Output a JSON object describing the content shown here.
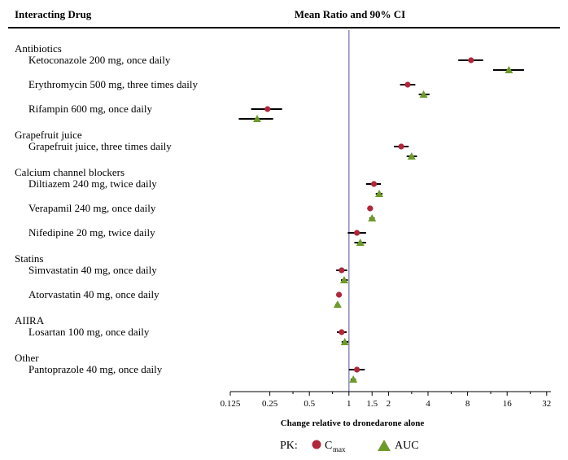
{
  "chart_data": {
    "type": "forest",
    "header_left": "Interacting Drug",
    "header_center": "Mean Ratio and 90% CI",
    "xlabel": "Change relative to dronedarone alone",
    "x_scale": "log2",
    "xlim": [
      0.125,
      32
    ],
    "x_ticks": [
      {
        "value": 0.125,
        "label": "0.125"
      },
      {
        "value": 0.25,
        "label": "0.25"
      },
      {
        "value": 0.5,
        "label": "0.5"
      },
      {
        "value": 1,
        "label": "1"
      },
      {
        "value": 1.5,
        "label": "1.5"
      },
      {
        "value": 2,
        "label": "2"
      },
      {
        "value": 4,
        "label": "4"
      },
      {
        "value": 8,
        "label": "8"
      },
      {
        "value": 16,
        "label": "16"
      },
      {
        "value": 32,
        "label": "32"
      }
    ],
    "reference_line": 1,
    "reference_color": "#8a8ab8",
    "legend": {
      "prefix": "PK:",
      "items": [
        {
          "key": "cmax",
          "label": "C",
          "subscript": "max",
          "marker": "circle",
          "color": "#b0263a"
        },
        {
          "key": "auc",
          "label": "AUC",
          "subscript": "",
          "marker": "triangle",
          "color": "#6e9a2a"
        }
      ]
    },
    "groups": [
      {
        "name": "Antibiotics",
        "drugs": [
          {
            "label": "Ketoconazole 200 mg, once daily",
            "cmax": {
              "mean": 8.5,
              "lo": 6.8,
              "hi": 10.5
            },
            "auc": {
              "mean": 16.5,
              "lo": 12.5,
              "hi": 21.5
            }
          },
          {
            "label": "Erythromycin 500 mg, three times daily",
            "cmax": {
              "mean": 2.8,
              "lo": 2.45,
              "hi": 3.2
            },
            "auc": {
              "mean": 3.7,
              "lo": 3.4,
              "hi": 4.1
            }
          },
          {
            "label": "Rifampin 600 mg, once daily",
            "cmax": {
              "mean": 0.24,
              "lo": 0.18,
              "hi": 0.31
            },
            "auc": {
              "mean": 0.2,
              "lo": 0.145,
              "hi": 0.265
            }
          }
        ]
      },
      {
        "name": "Grapefruit juice",
        "drugs": [
          {
            "label": "Grapefruit juice, three times daily",
            "cmax": {
              "mean": 2.5,
              "lo": 2.2,
              "hi": 2.85
            },
            "auc": {
              "mean": 3.0,
              "lo": 2.75,
              "hi": 3.3
            }
          }
        ]
      },
      {
        "name": "Calcium channel blockers",
        "drugs": [
          {
            "label": "Diltiazem 240 mg, twice daily",
            "cmax": {
              "mean": 1.55,
              "lo": 1.35,
              "hi": 1.75
            },
            "auc": {
              "mean": 1.7,
              "lo": 1.6,
              "hi": 1.8
            }
          },
          {
            "label": "Verapamil 240 mg, once daily",
            "cmax": {
              "mean": 1.45,
              "lo": 1.38,
              "hi": 1.52
            },
            "auc": {
              "mean": 1.5,
              "lo": 1.43,
              "hi": 1.57
            }
          },
          {
            "label": "Nifedipine 20 mg, twice daily",
            "cmax": {
              "mean": 1.15,
              "lo": 0.98,
              "hi": 1.35
            },
            "auc": {
              "mean": 1.22,
              "lo": 1.1,
              "hi": 1.35
            }
          }
        ]
      },
      {
        "name": "Statins",
        "drugs": [
          {
            "label": "Simvastatin 40 mg, once daily",
            "cmax": {
              "mean": 0.88,
              "lo": 0.8,
              "hi": 0.97
            },
            "auc": {
              "mean": 0.92,
              "lo": 0.87,
              "hi": 0.98
            }
          },
          {
            "label": "Atorvastatin 40 mg, once daily",
            "cmax": {
              "mean": 0.84,
              "lo": 0.81,
              "hi": 0.87
            },
            "auc": {
              "mean": 0.82,
              "lo": 0.79,
              "hi": 0.85
            }
          }
        ]
      },
      {
        "name": "AIIRA",
        "drugs": [
          {
            "label": "Losartan 100 mg, once daily",
            "cmax": {
              "mean": 0.88,
              "lo": 0.81,
              "hi": 0.96
            },
            "auc": {
              "mean": 0.93,
              "lo": 0.88,
              "hi": 0.99
            }
          }
        ]
      },
      {
        "name": "Other",
        "drugs": [
          {
            "label": "Pantoprazole 40 mg, once daily",
            "cmax": {
              "mean": 1.15,
              "lo": 1.0,
              "hi": 1.32
            },
            "auc": {
              "mean": 1.08,
              "lo": 1.03,
              "hi": 1.13
            }
          }
        ]
      }
    ]
  }
}
